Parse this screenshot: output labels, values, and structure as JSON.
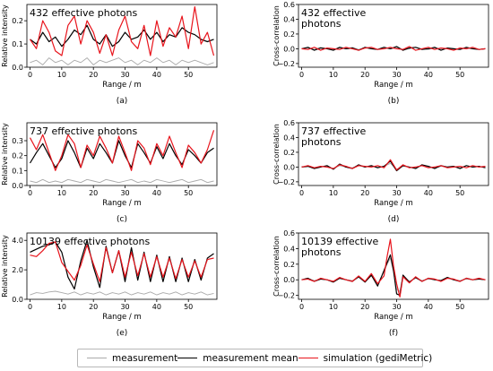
{
  "legend": {
    "measurement": "measurement",
    "measurement_mean": "measurement mean",
    "simulation": "simulation (gediMetric)"
  },
  "colors": {
    "measurement": "#aaaaaa",
    "measurement_mean": "#000000",
    "simulation": "#e8141c"
  },
  "chart_data": [
    {
      "panel": "(a)",
      "type": "line",
      "title": "432 effective photons",
      "xlabel": "Range / m",
      "ylabel": "Relative intensity",
      "xlim": [
        -1,
        59
      ],
      "ylim": [
        0,
        0.27
      ],
      "xticks": [
        0,
        10,
        20,
        30,
        40,
        50
      ],
      "yticks": [
        0,
        0.1,
        0.2
      ],
      "ytick_labels": [
        "0.0",
        "0.1",
        "0.2"
      ],
      "x": [
        0,
        2,
        4,
        6,
        8,
        10,
        12,
        14,
        16,
        18,
        20,
        22,
        24,
        26,
        28,
        30,
        32,
        34,
        36,
        38,
        40,
        42,
        44,
        46,
        48,
        50,
        52,
        54,
        56,
        58
      ],
      "series": [
        {
          "name": "measurement",
          "values": [
            0.02,
            0.03,
            0.01,
            0.04,
            0.02,
            0.03,
            0.01,
            0.03,
            0.02,
            0.04,
            0.01,
            0.03,
            0.02,
            0.03,
            0.04,
            0.02,
            0.03,
            0.01,
            0.03,
            0.02,
            0.04,
            0.02,
            0.03,
            0.01,
            0.03,
            0.02,
            0.03,
            0.02,
            0.01,
            0.02
          ]
        },
        {
          "name": "measurement mean",
          "values": [
            0.12,
            0.1,
            0.15,
            0.11,
            0.13,
            0.09,
            0.12,
            0.16,
            0.14,
            0.18,
            0.12,
            0.1,
            0.14,
            0.09,
            0.11,
            0.15,
            0.12,
            0.13,
            0.16,
            0.12,
            0.15,
            0.11,
            0.14,
            0.13,
            0.17,
            0.15,
            0.14,
            0.12,
            0.11,
            0.12
          ]
        },
        {
          "name": "simulation (gediMetric)",
          "values": [
            0.12,
            0.08,
            0.2,
            0.15,
            0.07,
            0.05,
            0.18,
            0.22,
            0.1,
            0.2,
            0.15,
            0.06,
            0.14,
            0.05,
            0.16,
            0.22,
            0.11,
            0.08,
            0.18,
            0.05,
            0.2,
            0.09,
            0.17,
            0.13,
            0.22,
            0.08,
            0.26,
            0.1,
            0.15,
            0.05
          ]
        }
      ]
    },
    {
      "panel": "(b)",
      "type": "line",
      "title": "432 effective photons",
      "xlabel": "Range / m",
      "ylabel": "Cross-correlation",
      "xlim": [
        -1,
        59
      ],
      "ylim": [
        -0.25,
        0.6
      ],
      "xticks": [
        0,
        10,
        20,
        30,
        40,
        50
      ],
      "yticks": [
        -0.2,
        0,
        0.2,
        0.4,
        0.6
      ],
      "ytick_labels": [
        "−0.2",
        "0.0",
        "0.2",
        "0.4",
        "0.6"
      ],
      "x": [
        0,
        2,
        4,
        6,
        8,
        10,
        12,
        14,
        16,
        18,
        20,
        22,
        24,
        26,
        28,
        30,
        32,
        34,
        36,
        38,
        40,
        42,
        44,
        46,
        48,
        50,
        52,
        54,
        56,
        58
      ],
      "series": [
        {
          "name": "measurement",
          "values": [
            0.0,
            0.01,
            -0.01,
            0.02,
            0.0,
            -0.01,
            0.01,
            0.0,
            0.02,
            -0.01,
            0.01,
            0.0,
            -0.01,
            0.02,
            0.0,
            0.01,
            -0.01,
            0.0,
            0.02,
            0.0,
            -0.01,
            0.01,
            0.0,
            0.01,
            -0.01,
            0.0,
            0.01,
            0.0,
            -0.01,
            0.0
          ]
        },
        {
          "name": "measurement mean",
          "values": [
            0.0,
            0.02,
            -0.02,
            0.01,
            0.0,
            -0.02,
            0.02,
            0.0,
            0.01,
            -0.02,
            0.02,
            0.0,
            -0.01,
            0.02,
            0.0,
            0.03,
            -0.02,
            0.01,
            0.02,
            -0.01,
            0.0,
            0.02,
            -0.02,
            0.01,
            0.0,
            -0.01,
            0.02,
            0.0,
            -0.01,
            0.0
          ]
        },
        {
          "name": "simulation (gediMetric)",
          "values": [
            0.0,
            -0.01,
            0.02,
            -0.02,
            0.01,
            0.0,
            -0.01,
            0.02,
            0.0,
            -0.02,
            0.01,
            0.02,
            -0.01,
            0.0,
            0.02,
            0.0,
            -0.01,
            0.03,
            -0.02,
            0.0,
            0.02,
            -0.01,
            0.01,
            0.0,
            -0.02,
            0.01,
            0.0,
            0.02,
            -0.01,
            0.0
          ]
        }
      ]
    },
    {
      "panel": "(c)",
      "type": "line",
      "title": "737 effective photons",
      "xlabel": "Range / m",
      "ylabel": "Relative intensity",
      "xlim": [
        -1,
        59
      ],
      "ylim": [
        0,
        0.42
      ],
      "xticks": [
        0,
        10,
        20,
        30,
        40,
        50
      ],
      "yticks": [
        0,
        0.1,
        0.2,
        0.3
      ],
      "ytick_labels": [
        "0.0",
        "0.1",
        "0.2",
        "0.3"
      ],
      "x": [
        0,
        2,
        4,
        6,
        8,
        10,
        12,
        14,
        16,
        18,
        20,
        22,
        24,
        26,
        28,
        30,
        32,
        34,
        36,
        38,
        40,
        42,
        44,
        46,
        48,
        50,
        52,
        54,
        56,
        58
      ],
      "series": [
        {
          "name": "measurement",
          "values": [
            0.03,
            0.02,
            0.04,
            0.02,
            0.03,
            0.02,
            0.04,
            0.03,
            0.02,
            0.04,
            0.03,
            0.02,
            0.04,
            0.03,
            0.02,
            0.03,
            0.04,
            0.02,
            0.03,
            0.02,
            0.04,
            0.03,
            0.02,
            0.03,
            0.04,
            0.02,
            0.03,
            0.04,
            0.02,
            0.03
          ]
        },
        {
          "name": "measurement mean",
          "values": [
            0.15,
            0.22,
            0.28,
            0.2,
            0.12,
            0.18,
            0.3,
            0.22,
            0.12,
            0.25,
            0.18,
            0.28,
            0.22,
            0.15,
            0.3,
            0.2,
            0.12,
            0.28,
            0.22,
            0.15,
            0.26,
            0.18,
            0.28,
            0.2,
            0.14,
            0.24,
            0.2,
            0.15,
            0.22,
            0.25
          ]
        },
        {
          "name": "simulation (gediMetric)",
          "values": [
            0.32,
            0.24,
            0.34,
            0.22,
            0.1,
            0.2,
            0.34,
            0.28,
            0.12,
            0.27,
            0.2,
            0.33,
            0.25,
            0.15,
            0.33,
            0.22,
            0.1,
            0.3,
            0.25,
            0.14,
            0.28,
            0.2,
            0.33,
            0.22,
            0.12,
            0.27,
            0.22,
            0.15,
            0.24,
            0.37
          ]
        }
      ]
    },
    {
      "panel": "(d)",
      "type": "line",
      "title": "737 effective photons",
      "xlabel": "Range / m",
      "ylabel": "Cross-correlation",
      "xlim": [
        -1,
        59
      ],
      "ylim": [
        -0.25,
        0.6
      ],
      "xticks": [
        0,
        10,
        20,
        30,
        40,
        50
      ],
      "yticks": [
        -0.2,
        0,
        0.2,
        0.4,
        0.6
      ],
      "ytick_labels": [
        "−0.2",
        "0.0",
        "0.2",
        "0.4",
        "0.6"
      ],
      "x": [
        0,
        2,
        4,
        6,
        8,
        10,
        12,
        14,
        16,
        18,
        20,
        22,
        24,
        26,
        28,
        30,
        32,
        34,
        36,
        38,
        40,
        42,
        44,
        46,
        48,
        50,
        52,
        54,
        56,
        58
      ],
      "series": [
        {
          "name": "measurement",
          "values": [
            0.0,
            0.01,
            -0.01,
            0.01,
            0.0,
            -0.02,
            0.02,
            0.0,
            -0.01,
            0.02,
            0.0,
            0.01,
            0.0,
            0.01,
            0.05,
            -0.03,
            0.01,
            0.0,
            -0.01,
            0.02,
            0.0,
            -0.01,
            0.01,
            0.0,
            0.01,
            -0.01,
            0.02,
            0.0,
            0.01,
            -0.01
          ]
        },
        {
          "name": "measurement mean",
          "values": [
            0.0,
            0.01,
            -0.02,
            0.0,
            0.02,
            -0.03,
            0.04,
            0.0,
            -0.02,
            0.03,
            0.0,
            0.02,
            -0.01,
            0.01,
            0.08,
            -0.05,
            0.02,
            0.0,
            -0.02,
            0.03,
            0.01,
            -0.02,
            0.02,
            0.0,
            0.01,
            -0.02,
            0.02,
            0.0,
            0.01,
            -0.01
          ]
        },
        {
          "name": "simulation (gediMetric)",
          "values": [
            0.0,
            0.02,
            -0.01,
            0.01,
            0.0,
            -0.02,
            0.03,
            0.01,
            -0.02,
            0.02,
            0.01,
            0.0,
            0.02,
            -0.01,
            0.1,
            -0.04,
            0.03,
            -0.01,
            0.0,
            0.02,
            -0.01,
            0.0,
            0.02,
            -0.01,
            0.0,
            0.01,
            -0.01,
            0.02,
            0.0,
            0.01
          ]
        }
      ]
    },
    {
      "panel": "(e)",
      "type": "line",
      "title": "10139 effective photons",
      "xlabel": "Range / m",
      "ylabel": "Relative intensity",
      "xlim": [
        -1,
        59
      ],
      "ylim": [
        0,
        4.5
      ],
      "xticks": [
        0,
        10,
        20,
        30,
        40,
        50
      ],
      "yticks": [
        0,
        2,
        4
      ],
      "ytick_labels": [
        "0.0",
        "2.0",
        "4.0"
      ],
      "x": [
        0,
        2,
        4,
        6,
        8,
        10,
        12,
        14,
        16,
        18,
        20,
        22,
        24,
        26,
        28,
        30,
        32,
        34,
        36,
        38,
        40,
        42,
        44,
        46,
        48,
        50,
        52,
        54,
        56,
        58
      ],
      "series": [
        {
          "name": "measurement",
          "values": [
            0.3,
            0.45,
            0.4,
            0.5,
            0.55,
            0.45,
            0.35,
            0.5,
            0.3,
            0.45,
            0.35,
            0.5,
            0.3,
            0.45,
            0.35,
            0.5,
            0.3,
            0.45,
            0.35,
            0.5,
            0.3,
            0.45,
            0.35,
            0.5,
            0.3,
            0.45,
            0.35,
            0.5,
            0.3,
            0.4
          ]
        },
        {
          "name": "measurement mean",
          "values": [
            3.2,
            3.4,
            3.6,
            3.7,
            3.9,
            3.2,
            1.5,
            0.7,
            2.6,
            4.0,
            2.2,
            0.8,
            3.6,
            1.8,
            3.3,
            1.2,
            3.5,
            1.3,
            3.2,
            1.2,
            3.0,
            1.2,
            2.9,
            1.2,
            2.8,
            1.2,
            2.7,
            1.3,
            2.8,
            3.1
          ]
        },
        {
          "name": "simulation (gediMetric)",
          "values": [
            3.0,
            2.9,
            3.3,
            3.8,
            3.9,
            2.5,
            1.9,
            1.3,
            2.3,
            3.7,
            2.4,
            1.2,
            3.5,
            1.8,
            3.3,
            1.5,
            3.2,
            1.6,
            3.1,
            1.5,
            2.9,
            1.5,
            2.8,
            1.4,
            2.7,
            1.5,
            2.6,
            1.5,
            2.7,
            2.8
          ]
        }
      ]
    },
    {
      "panel": "(f)",
      "type": "line",
      "title": "10139 effective photons",
      "xlabel": "Range / m",
      "ylabel": "Cross-correlation",
      "xlim": [
        -1,
        59
      ],
      "ylim": [
        -0.25,
        0.6
      ],
      "xticks": [
        0,
        10,
        20,
        30,
        40,
        50
      ],
      "yticks": [
        -0.2,
        0,
        0.2,
        0.4,
        0.6
      ],
      "ytick_labels": [
        "−0.2",
        "0.0",
        "0.2",
        "0.4",
        "0.6"
      ],
      "x": [
        0,
        2,
        4,
        6,
        8,
        10,
        12,
        14,
        16,
        18,
        20,
        22,
        24,
        26,
        27,
        28,
        29,
        30,
        31,
        32,
        34,
        36,
        38,
        40,
        42,
        44,
        46,
        48,
        50,
        52,
        54,
        56,
        58
      ],
      "series": [
        {
          "name": "measurement",
          "values": [
            0.0,
            0.01,
            -0.01,
            0.01,
            0.0,
            -0.02,
            0.02,
            0.0,
            -0.01,
            0.03,
            -0.02,
            0.05,
            -0.05,
            0.1,
            0.2,
            0.28,
            0.1,
            -0.12,
            -0.15,
            0.05,
            -0.02,
            0.02,
            -0.01,
            0.01,
            0.0,
            -0.01,
            0.02,
            0.0,
            -0.01,
            0.01,
            0.0,
            0.01,
            0.0
          ]
        },
        {
          "name": "measurement mean",
          "values": [
            0.0,
            0.02,
            -0.02,
            0.01,
            0.0,
            -0.03,
            0.02,
            0.0,
            -0.02,
            0.04,
            -0.03,
            0.06,
            -0.08,
            0.12,
            0.22,
            0.32,
            0.12,
            -0.18,
            -0.2,
            0.06,
            -0.03,
            0.03,
            -0.02,
            0.02,
            0.0,
            -0.01,
            0.03,
            0.0,
            -0.02,
            0.02,
            0.0,
            0.01,
            0.0
          ]
        },
        {
          "name": "simulation (gediMetric)",
          "values": [
            0.0,
            0.01,
            -0.02,
            0.02,
            0.0,
            -0.02,
            0.03,
            0.0,
            -0.02,
            0.05,
            -0.02,
            0.08,
            -0.05,
            0.05,
            0.3,
            0.52,
            0.18,
            -0.05,
            -0.22,
            0.04,
            -0.04,
            0.04,
            -0.02,
            0.02,
            0.01,
            -0.02,
            0.02,
            0.01,
            -0.02,
            0.02,
            0.0,
            0.02,
            0.0
          ]
        }
      ]
    }
  ]
}
